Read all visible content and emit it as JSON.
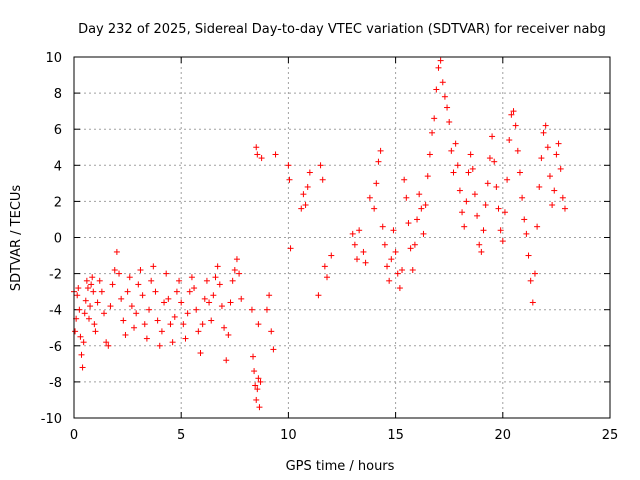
{
  "chart_data": {
    "type": "scatter",
    "title": "Day 232 of 2025, Sidereal Day-to-day VTEC variation (SDTVAR) for receiver nabg",
    "xlabel": "GPS time / hours",
    "ylabel": "SDTVAR / TECUs",
    "xlim": [
      0,
      25
    ],
    "ylim": [
      -10,
      10
    ],
    "xticks": [
      0,
      5,
      10,
      15,
      20,
      25
    ],
    "yticks": [
      -10,
      -8,
      -6,
      -4,
      -2,
      0,
      2,
      4,
      6,
      8,
      10
    ],
    "grid": true,
    "marker": "+",
    "color": "#ff0000",
    "series": [
      {
        "name": "SDTVAR",
        "x": [
          0.0,
          0.05,
          0.1,
          0.15,
          0.2,
          0.25,
          0.3,
          0.35,
          0.4,
          0.45,
          0.5,
          0.55,
          0.6,
          0.65,
          0.7,
          0.75,
          0.8,
          0.85,
          0.9,
          0.95,
          1.0,
          1.1,
          1.2,
          1.3,
          1.4,
          1.5,
          1.6,
          1.7,
          1.8,
          1.9,
          2.0,
          2.1,
          2.2,
          2.3,
          2.4,
          2.5,
          2.6,
          2.7,
          2.8,
          2.9,
          3.0,
          3.1,
          3.2,
          3.3,
          3.4,
          3.5,
          3.6,
          3.7,
          3.8,
          3.9,
          4.0,
          4.1,
          4.2,
          4.3,
          4.4,
          4.5,
          4.6,
          4.7,
          4.8,
          4.9,
          5.0,
          5.1,
          5.2,
          5.3,
          5.4,
          5.5,
          5.6,
          5.7,
          5.8,
          5.9,
          6.0,
          6.1,
          6.2,
          6.3,
          6.4,
          6.5,
          6.6,
          6.7,
          6.8,
          6.9,
          7.0,
          7.1,
          7.2,
          7.3,
          7.4,
          7.5,
          7.6,
          7.7,
          7.8,
          8.3,
          8.35,
          8.4,
          8.45,
          8.5,
          8.55,
          8.6,
          8.65,
          8.7,
          8.75,
          8.5,
          8.55,
          8.6,
          9.0,
          9.1,
          9.2,
          9.3,
          9.4,
          10.0,
          10.05,
          10.1,
          10.6,
          10.7,
          10.8,
          10.9,
          11.0,
          11.4,
          11.5,
          11.6,
          11.7,
          11.8,
          12.0,
          13.0,
          13.1,
          13.2,
          13.3,
          13.5,
          13.6,
          13.8,
          14.0,
          14.1,
          14.2,
          14.3,
          14.4,
          14.5,
          14.6,
          14.7,
          14.8,
          14.9,
          15.0,
          15.1,
          15.2,
          15.3,
          15.4,
          15.5,
          15.6,
          15.7,
          15.8,
          15.9,
          16.0,
          16.1,
          16.2,
          16.3,
          16.4,
          16.5,
          16.6,
          16.7,
          16.8,
          16.9,
          17.0,
          17.1,
          17.2,
          17.3,
          17.4,
          17.5,
          17.6,
          17.7,
          17.8,
          17.9,
          18.0,
          18.1,
          18.2,
          18.3,
          18.4,
          18.5,
          18.6,
          18.7,
          18.8,
          18.9,
          19.0,
          19.1,
          19.2,
          19.3,
          19.4,
          19.5,
          19.6,
          19.7,
          19.8,
          19.9,
          20.0,
          20.1,
          20.2,
          20.3,
          20.4,
          20.5,
          20.6,
          20.7,
          20.8,
          20.9,
          21.0,
          21.1,
          21.2,
          21.3,
          21.4,
          21.5,
          21.6,
          21.7,
          21.8,
          21.9,
          22.0,
          22.1,
          22.2,
          22.3,
          22.4,
          22.5,
          22.6,
          22.7,
          22.8,
          22.9
        ],
        "y": [
          -3.0,
          -5.2,
          -4.5,
          -3.2,
          -2.8,
          -4.0,
          -5.5,
          -6.5,
          -7.2,
          -5.8,
          -4.2,
          -3.5,
          -2.4,
          -2.8,
          -4.5,
          -3.8,
          -2.6,
          -2.2,
          -3.0,
          -4.8,
          -5.2,
          -3.6,
          -2.4,
          -3.0,
          -4.2,
          -5.8,
          -6.0,
          -3.8,
          -2.6,
          -1.8,
          -0.8,
          -2.0,
          -3.4,
          -4.6,
          -5.4,
          -3.0,
          -2.2,
          -3.8,
          -5.0,
          -4.2,
          -2.6,
          -1.8,
          -3.2,
          -4.8,
          -5.6,
          -4.0,
          -2.4,
          -1.6,
          -3.0,
          -4.6,
          -6.0,
          -5.2,
          -3.6,
          -2.0,
          -3.4,
          -4.8,
          -5.8,
          -4.4,
          -3.0,
          -2.4,
          -3.6,
          -4.8,
          -5.6,
          -4.2,
          -3.0,
          -2.2,
          -2.8,
          -4.0,
          -5.2,
          -6.4,
          -4.8,
          -3.4,
          -2.4,
          -3.6,
          -4.6,
          -3.2,
          -2.2,
          -1.6,
          -2.6,
          -3.8,
          -5.0,
          -6.8,
          -5.4,
          -3.6,
          -2.4,
          -1.8,
          -1.2,
          -2.0,
          -3.4,
          -4.0,
          -6.6,
          -7.4,
          -8.2,
          -9.0,
          -8.4,
          -7.8,
          -9.4,
          -8.0,
          4.4,
          5.0,
          4.6,
          -4.8,
          -4.0,
          -3.2,
          -5.2,
          -6.2,
          4.6,
          4.0,
          3.2,
          -0.6,
          1.6,
          2.4,
          1.8,
          2.8,
          3.6,
          -3.2,
          4.0,
          3.2,
          -1.6,
          -2.2,
          -1.0,
          0.2,
          -0.4,
          -1.2,
          0.4,
          -0.8,
          -1.4,
          2.2,
          1.6,
          3.0,
          4.2,
          4.8,
          0.6,
          -0.4,
          -1.6,
          -2.4,
          -1.2,
          0.4,
          -0.8,
          -2.0,
          -2.8,
          -1.8,
          3.2,
          2.2,
          0.8,
          -0.6,
          -1.8,
          -0.4,
          1.0,
          2.4,
          1.6,
          0.2,
          1.8,
          3.4,
          4.6,
          5.8,
          6.6,
          8.2,
          9.4,
          9.8,
          8.6,
          7.8,
          7.2,
          6.4,
          4.8,
          3.6,
          5.2,
          4.0,
          2.6,
          1.4,
          0.6,
          2.0,
          3.6,
          4.6,
          3.8,
          2.4,
          1.2,
          -0.4,
          -0.8,
          0.4,
          1.8,
          3.0,
          4.4,
          5.6,
          4.2,
          2.8,
          1.6,
          0.4,
          -0.2,
          1.4,
          3.2,
          5.4,
          6.8,
          7.0,
          6.2,
          4.8,
          3.6,
          2.2,
          1.0,
          0.2,
          -1.0,
          -2.4,
          -3.6,
          -2.0,
          0.6,
          2.8,
          4.4,
          5.8,
          6.2,
          5.0,
          3.4,
          1.8,
          2.6,
          4.6,
          5.2,
          3.8,
          2.2,
          1.6
        ]
      }
    ]
  }
}
